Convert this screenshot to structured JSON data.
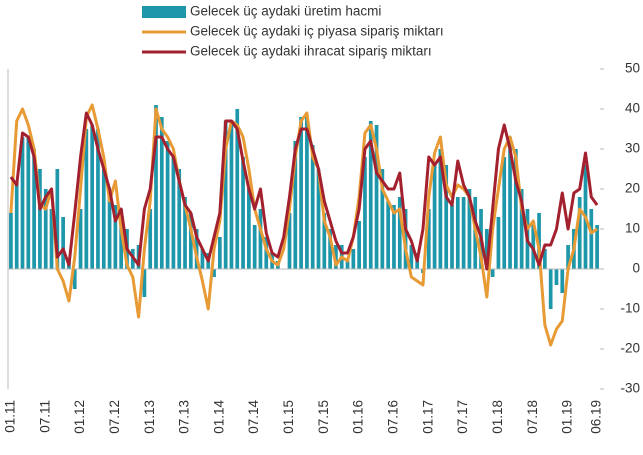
{
  "chart_data": {
    "type": "bar_line",
    "categories": [
      "01.11",
      null,
      null,
      null,
      null,
      null,
      "07.11",
      null,
      null,
      null,
      null,
      null,
      "01.12",
      null,
      null,
      null,
      null,
      null,
      "07.12",
      null,
      null,
      null,
      null,
      null,
      "01.13",
      null,
      null,
      null,
      null,
      null,
      "07.13",
      null,
      null,
      null,
      null,
      null,
      "01.14",
      null,
      null,
      null,
      null,
      null,
      "07.14",
      null,
      null,
      null,
      null,
      null,
      "01.15",
      null,
      null,
      null,
      null,
      null,
      "07.15",
      null,
      null,
      null,
      null,
      null,
      "01.16",
      null,
      null,
      null,
      null,
      null,
      "07.16",
      null,
      null,
      null,
      null,
      null,
      "01.17",
      null,
      null,
      null,
      null,
      null,
      "07.17",
      null,
      null,
      null,
      null,
      null,
      "01.18",
      null,
      null,
      null,
      null,
      null,
      "07.18",
      null,
      null,
      null,
      null,
      null,
      "01.19",
      null,
      null,
      null,
      null,
      "06.19"
    ],
    "series": [
      {
        "name": "Gelecek üç aydaki üretim hacmi",
        "kind": "bar",
        "color": "#1f97ab",
        "values": [
          14,
          22,
          33,
          33,
          30,
          25,
          20,
          15,
          25,
          13,
          2,
          -5,
          15,
          35,
          36,
          35,
          25,
          18,
          16,
          15,
          10,
          5,
          6,
          -7,
          15,
          41,
          38,
          32,
          28,
          25,
          18,
          14,
          10,
          5,
          4,
          -2,
          8,
          37,
          37,
          40,
          28,
          20,
          11,
          15,
          8,
          4,
          2,
          0,
          14,
          32,
          38,
          38,
          31,
          25,
          14,
          10,
          6,
          6,
          2,
          5,
          12,
          28,
          37,
          36,
          25,
          17,
          16,
          18,
          15,
          6,
          4,
          -1,
          15,
          26,
          30,
          26,
          16,
          18,
          18,
          20,
          18,
          15,
          10,
          -2,
          13,
          28,
          33,
          30,
          20,
          15,
          12,
          14,
          5,
          -10,
          -4,
          -6,
          6,
          10,
          18,
          26,
          15,
          11
        ]
      },
      {
        "name": "Gelecek üç aydaki iç piyasa sipariş miktarı",
        "kind": "line",
        "color": "#e89a35",
        "values": [
          14,
          37,
          40,
          36,
          30,
          16,
          15,
          20,
          0,
          -3,
          -8,
          3,
          20,
          38,
          41,
          35,
          28,
          17,
          22,
          10,
          1,
          -2,
          -12,
          5,
          17,
          40,
          35,
          33,
          30,
          22,
          16,
          10,
          3,
          -3,
          -10,
          5,
          12,
          30,
          37,
          36,
          33,
          25,
          15,
          10,
          5,
          2,
          1,
          5,
          15,
          28,
          37,
          39,
          28,
          25,
          12,
          8,
          1,
          3,
          2,
          8,
          18,
          34,
          36,
          30,
          20,
          17,
          14,
          15,
          5,
          -2,
          -3,
          -4,
          18,
          29,
          33,
          21,
          18,
          21,
          20,
          18,
          10,
          3,
          -7,
          10,
          20,
          30,
          33,
          28,
          15,
          10,
          12,
          5,
          -14,
          -19,
          -15,
          -13,
          0,
          5,
          15,
          13,
          9,
          10
        ]
      },
      {
        "name": "Gelecek üç aydaki ihracat sipariş miktarı",
        "kind": "line",
        "color": "#a3202e",
        "values": [
          23,
          21,
          34,
          33,
          28,
          15,
          18,
          20,
          3,
          5,
          1,
          14,
          28,
          39,
          36,
          30,
          25,
          20,
          12,
          15,
          5,
          3,
          1,
          15,
          20,
          33,
          33,
          30,
          28,
          22,
          16,
          14,
          8,
          5,
          2,
          8,
          14,
          37,
          37,
          35,
          27,
          20,
          15,
          20,
          9,
          4,
          3,
          8,
          18,
          30,
          35,
          35,
          30,
          25,
          17,
          12,
          7,
          4,
          4,
          8,
          15,
          30,
          32,
          24,
          22,
          20,
          20,
          24,
          10,
          7,
          2,
          10,
          28,
          26,
          28,
          18,
          16,
          27,
          21,
          18,
          12,
          8,
          0,
          15,
          30,
          36,
          30,
          22,
          17,
          7,
          5,
          1,
          6,
          6,
          10,
          19,
          10,
          19,
          20,
          29,
          18,
          16
        ]
      }
    ],
    "ylim": [
      -30,
      50
    ],
    "yticks": [
      -30,
      -20,
      -10,
      0,
      10,
      20,
      30,
      40,
      50
    ],
    "y_axis_side": "right",
    "grid": false
  }
}
